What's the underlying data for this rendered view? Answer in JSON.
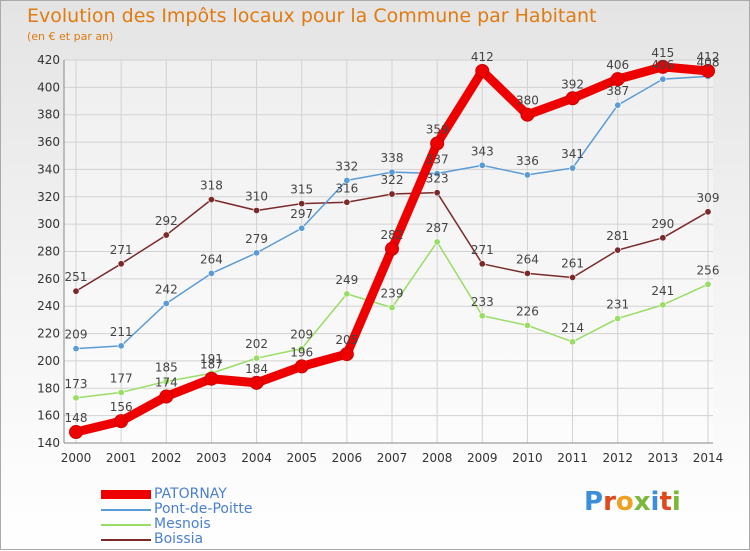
{
  "title": "Evolution des Impôts locaux pour la Commune par Habitant",
  "subtitle": "(en € et par an)",
  "logo": {
    "text": "Proxiti",
    "colors": [
      "#3a8fd8",
      "#e0491c",
      "#f0a020",
      "#7ab83a",
      "#3a8fd8",
      "#e0491c",
      "#7ab83a"
    ]
  },
  "chart_data": {
    "type": "line",
    "x": [
      "2000",
      "2001",
      "2002",
      "2003",
      "2004",
      "2005",
      "2006",
      "2007",
      "2008",
      "2009",
      "2010",
      "2011",
      "2012",
      "2013",
      "2014"
    ],
    "ylim": [
      140,
      420
    ],
    "yticks": [
      140,
      160,
      180,
      200,
      220,
      240,
      260,
      280,
      300,
      320,
      340,
      360,
      380,
      400,
      420
    ],
    "grid": true,
    "legend": "bottom-left",
    "series": [
      {
        "name": "PATORNAY",
        "color": "#ee0000",
        "values": [
          148,
          156,
          174,
          187,
          184,
          196,
          205,
          282,
          359,
          412,
          380,
          392,
          406,
          415,
          412
        ]
      },
      {
        "name": "Pont-de-Poitte",
        "color": "#5b9bd5",
        "values": [
          209,
          211,
          242,
          264,
          279,
          297,
          332,
          338,
          337,
          343,
          336,
          341,
          387,
          406,
          408
        ]
      },
      {
        "name": "Mesnois",
        "color": "#99dd66",
        "values": [
          173,
          177,
          185,
          191,
          202,
          209,
          249,
          239,
          287,
          233,
          226,
          214,
          231,
          241,
          256
        ]
      },
      {
        "name": "Boissia",
        "color": "#7a2a2a",
        "values": [
          251,
          271,
          292,
          318,
          310,
          315,
          316,
          322,
          323,
          271,
          264,
          261,
          281,
          290,
          309
        ]
      }
    ]
  }
}
